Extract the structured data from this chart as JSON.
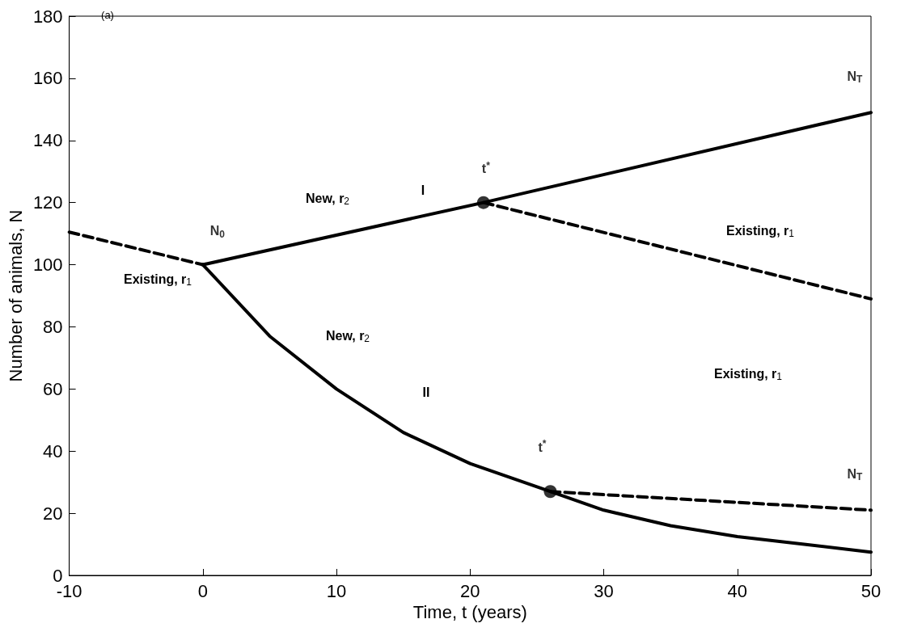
{
  "chart_data": {
    "type": "line",
    "xlabel": "Time, t (years)",
    "ylabel": "Number of animals, N",
    "xlim": [
      -10,
      50
    ],
    "xticks": [
      -10,
      0,
      10,
      20,
      30,
      40,
      50
    ],
    "ylim": [
      0,
      180
    ],
    "yticks": [
      0,
      20,
      40,
      60,
      80,
      100,
      120,
      140,
      160,
      180
    ],
    "grid": false,
    "series": [
      {
        "color": "#000000",
        "line_style": "dashed",
        "x": [
          -10,
          0
        ],
        "values": [
          110.5,
          100
        ]
      },
      {
        "color": "#000000",
        "line_style": "solid",
        "x": [
          0,
          21,
          50
        ],
        "values": [
          100,
          120,
          149
        ]
      },
      {
        "color": "#000000",
        "line_style": "dashed",
        "x": [
          21,
          50
        ],
        "values": [
          120,
          89
        ]
      },
      {
        "color": "#000000",
        "line_style": "solid",
        "x": [
          0,
          5,
          10,
          15,
          20,
          26,
          30,
          35,
          40,
          45,
          50
        ],
        "values": [
          100,
          77,
          60,
          46,
          36,
          27,
          21,
          16,
          12.5,
          10,
          7.5
        ]
      },
      {
        "color": "#000000",
        "line_style": "dashed",
        "x": [
          26,
          50
        ],
        "values": [
          27,
          21
        ]
      },
      {
        "type": "scatter",
        "color": "#000000",
        "marker": "circle",
        "x": [
          21,
          26
        ],
        "values": [
          120,
          27
        ]
      }
    ],
    "annotations": [
      "(a)",
      "Existing, r$_{1}$",
      "New, r$_{2}$",
      "I",
      "Existing, r$_{1}$",
      "New, r$_{2}$",
      "II",
      "Existing, r$_{1}$",
      {
        "text": "N$_{0}$",
        "x": 0,
        "y": 100
      },
      {
        "text": "t$^{*}$",
        "x": 21,
        "y": 120
      },
      {
        "text": "N$_{T}$",
        "x": 50,
        "y": 149
      },
      {
        "text": "t$^{*}$",
        "x": 26,
        "y": 27
      },
      {
        "text": "N$_{T}$",
        "x": 50,
        "y": 21
      }
    ]
  }
}
